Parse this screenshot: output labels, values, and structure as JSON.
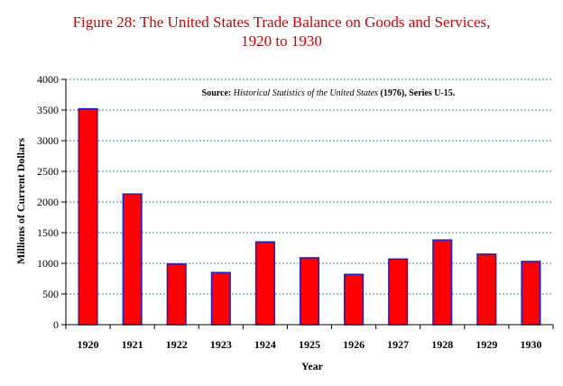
{
  "title_line1": "Figure 28:  The United States Trade Balance on Goods and Services,",
  "title_line2": "1920 to 1930",
  "source": {
    "prefix": "Source: ",
    "italic": "Historical Statistics of the United States",
    "suffix": "  (1976), Series U-15."
  },
  "colors": {
    "bar_fill": "#ff0000",
    "bar_stroke": "#1f1fbf",
    "grid": "#2e8b8b",
    "title": "#cc0000"
  },
  "chart_data": {
    "type": "bar",
    "categories": [
      "1920",
      "1921",
      "1922",
      "1923",
      "1924",
      "1925",
      "1926",
      "1927",
      "1928",
      "1929",
      "1930"
    ],
    "values": [
      3520,
      2130,
      990,
      850,
      1350,
      1090,
      820,
      1070,
      1380,
      1150,
      1030
    ],
    "xlabel": "Year",
    "ylabel": "Millions of Current Dollars",
    "ylim": [
      0,
      4000
    ],
    "yticks": [
      "0",
      "500",
      "1000",
      "1500",
      "2000",
      "2500",
      "3000",
      "3500",
      "4000"
    ],
    "grid": true
  }
}
